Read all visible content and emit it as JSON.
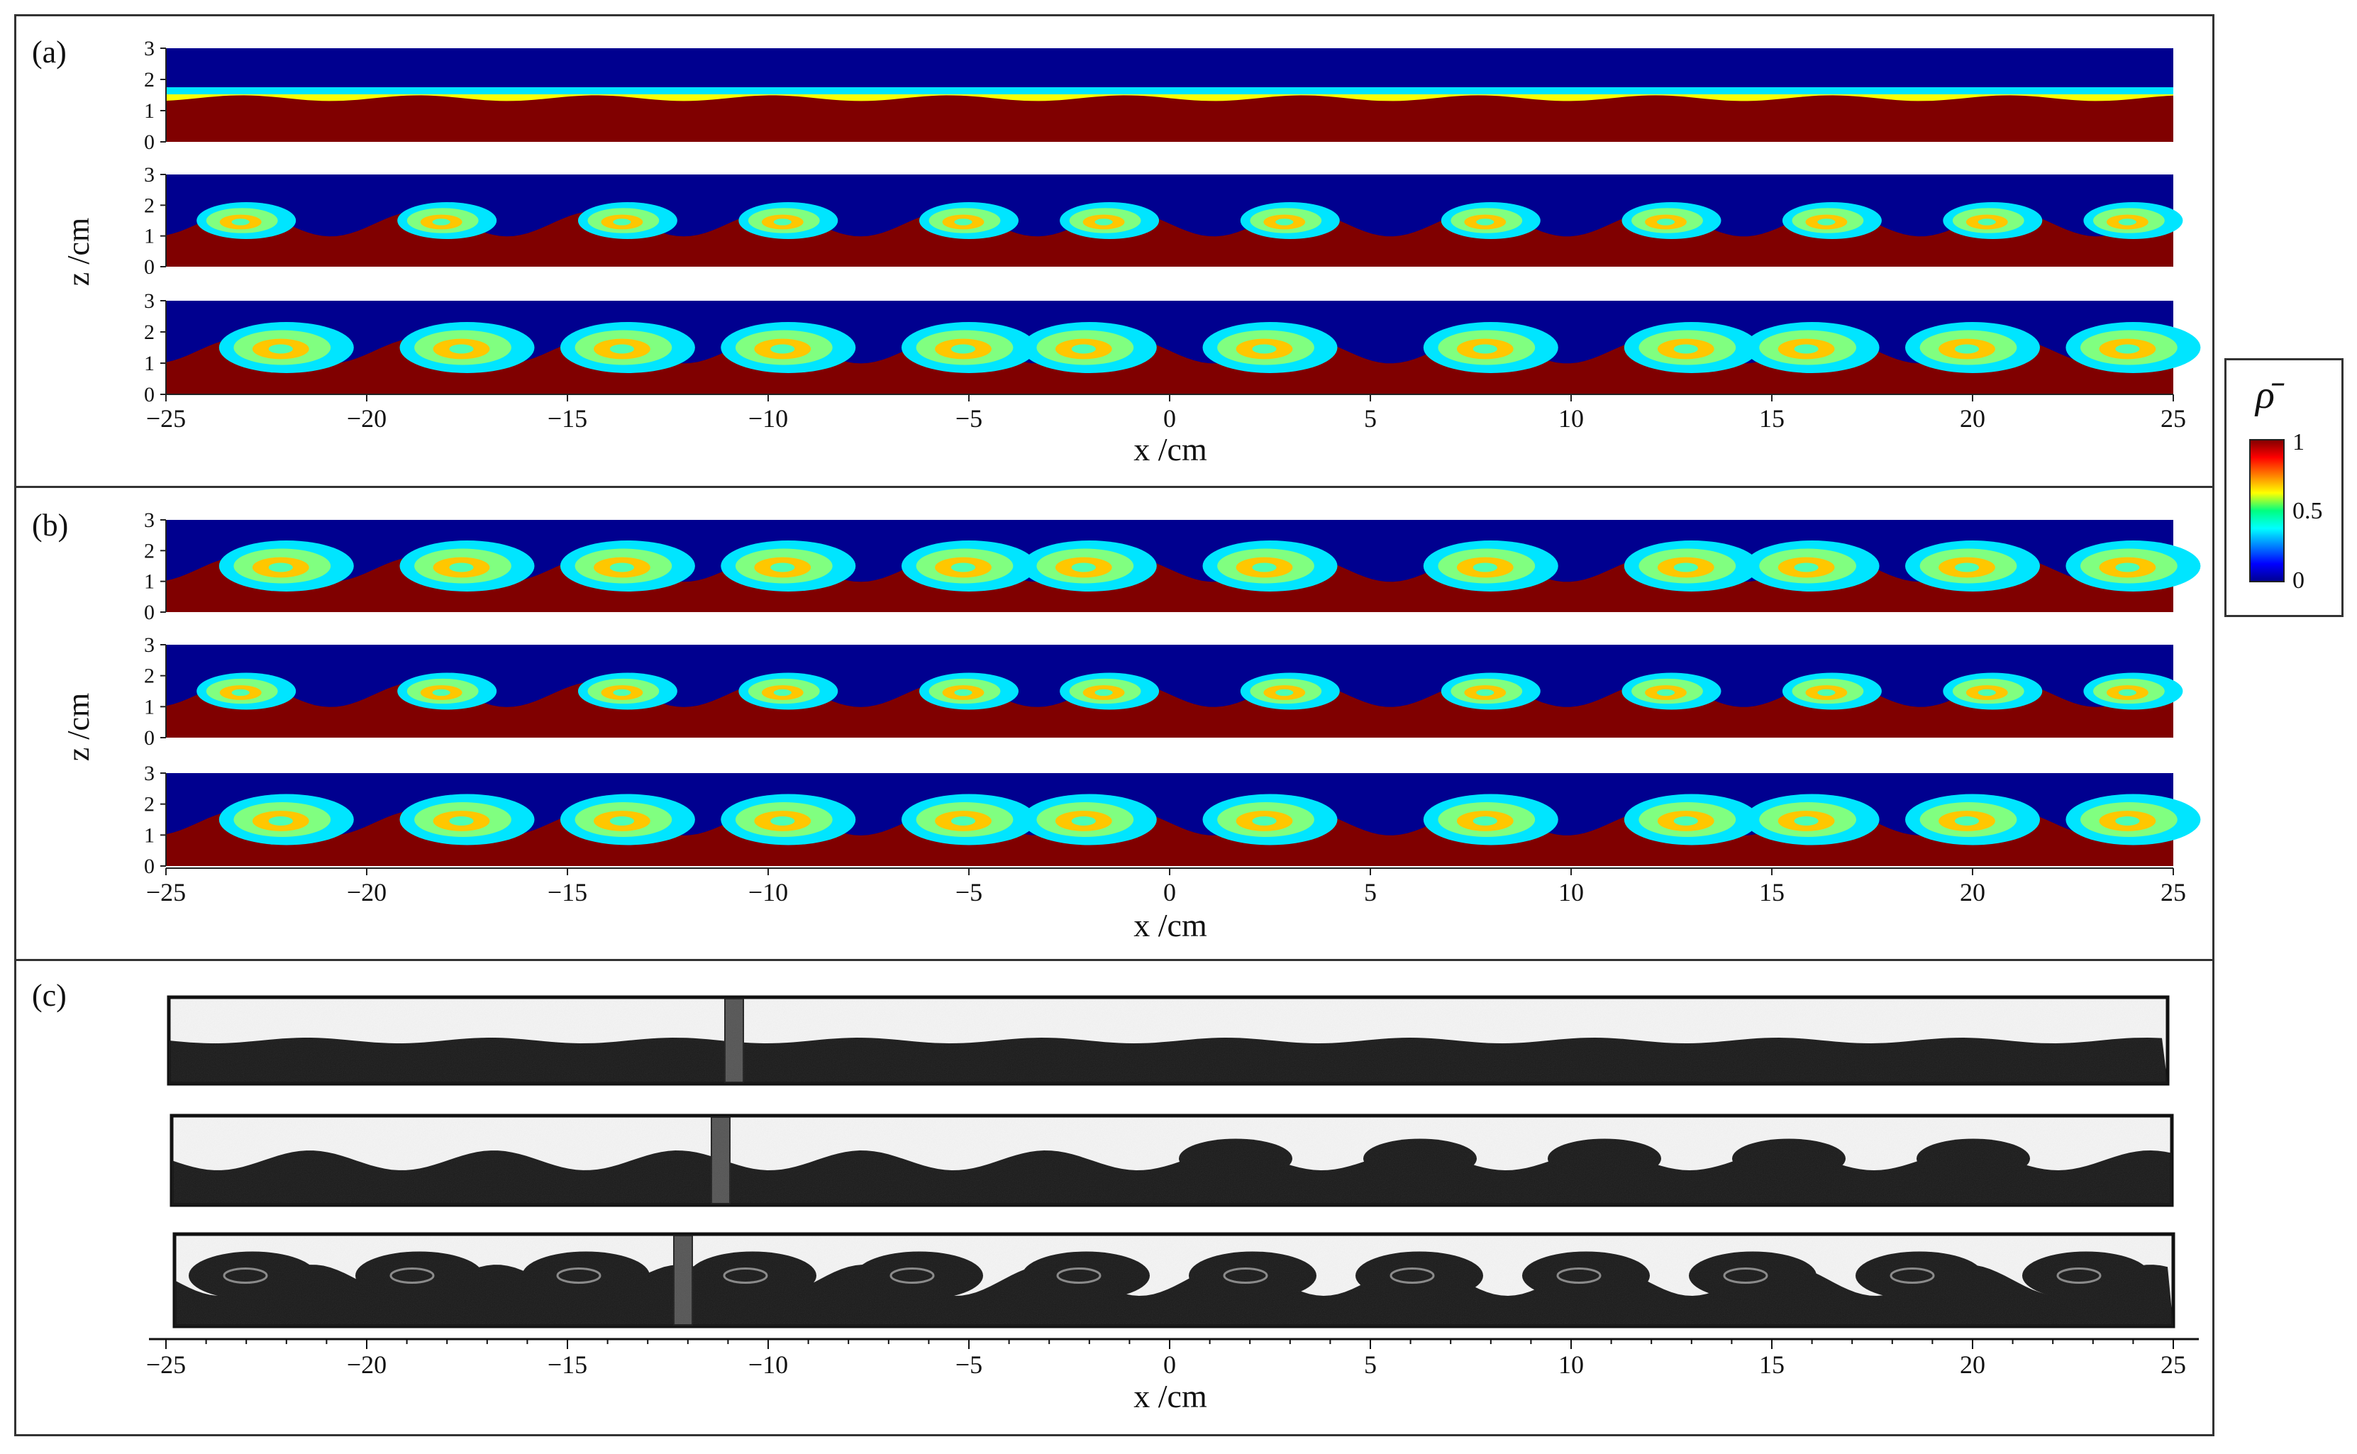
{
  "figure": {
    "panels": [
      {
        "label": "(a)",
        "zlabel": "z /cm",
        "xlabel": "x /cm"
      },
      {
        "label": "(b)",
        "zlabel": "z /cm",
        "xlabel": "x /cm"
      },
      {
        "label": "(c)",
        "xlabel": "x /cm"
      }
    ],
    "colorbar": {
      "label": "ρ̄",
      "ticks": [
        "1",
        "0.5",
        "0"
      ],
      "colormap": "jet"
    },
    "colors": {
      "jet_low": "#00008f",
      "jet_mid": "#00ff80",
      "jet_high": "#800000",
      "photo_dark": "#1a1a1a",
      "photo_light": "#f4f4f4"
    }
  },
  "chart_data": [
    {
      "type": "heatmap",
      "panel": "(a)",
      "subplots": 3,
      "x": [
        -25,
        -20,
        -15,
        -10,
        -5,
        0,
        5,
        10,
        15,
        20,
        25
      ],
      "xlim": [
        -25,
        25
      ],
      "ylim": [
        0,
        3
      ],
      "z_ticks": [
        0,
        1,
        2,
        3
      ],
      "xlabel": "x /cm",
      "ylabel": "z /cm",
      "field": "ρ̄"
    },
    {
      "type": "heatmap",
      "panel": "(b)",
      "subplots": 3,
      "x": [
        -25,
        -20,
        -15,
        -10,
        -5,
        0,
        5,
        10,
        15,
        20,
        25
      ],
      "xlim": [
        -25,
        25
      ],
      "ylim": [
        0,
        3
      ],
      "z_ticks": [
        0,
        1,
        2,
        3
      ],
      "xlabel": "x /cm",
      "ylabel": "z /cm",
      "field": "ρ̄"
    },
    {
      "type": "heatmap",
      "panel": "(c)",
      "subplots": 3,
      "x": [
        -25,
        -20,
        -15,
        -10,
        -5,
        0,
        5,
        10,
        15,
        20,
        25
      ],
      "xlim": [
        -25,
        25
      ],
      "xlabel": "x /cm"
    }
  ]
}
